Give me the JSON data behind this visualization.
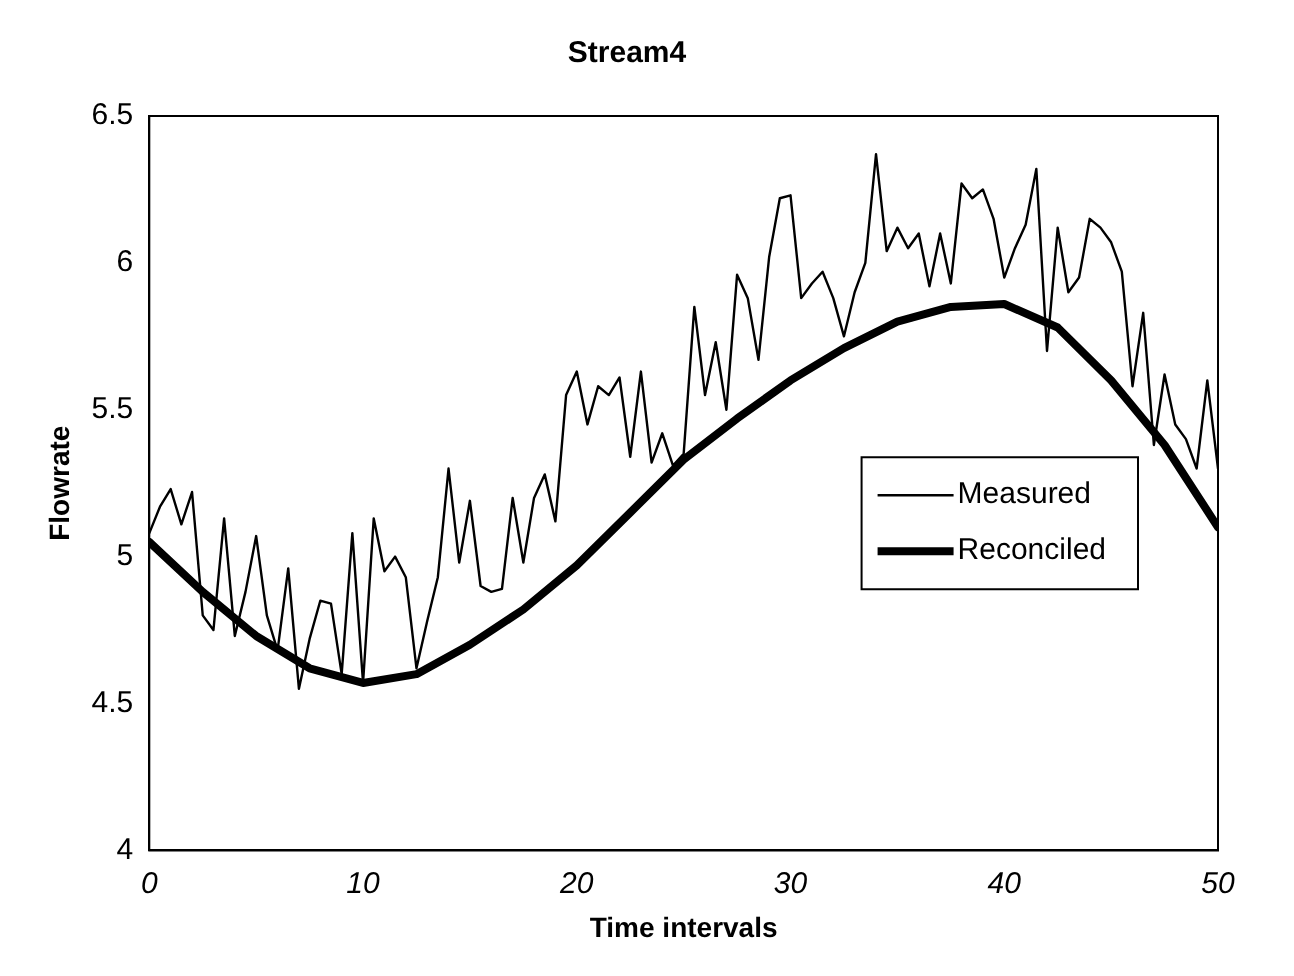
{
  "chart_data": {
    "type": "line",
    "title": "Stream4",
    "xlabel": "Time intervals",
    "ylabel": "Flowrate",
    "xlim": [
      0,
      50
    ],
    "xticks": [
      0,
      10,
      20,
      30,
      40,
      50
    ],
    "ylim": [
      4,
      6.5
    ],
    "yticks": [
      4,
      4.5,
      5,
      5.5,
      6,
      6.5
    ],
    "grid": false,
    "legend": "right",
    "marker": "none",
    "line_style": "solid",
    "series": [
      {
        "name": "Measured",
        "color": "#000000",
        "x": [
          0,
          0.5,
          1,
          1.5,
          2,
          2.5,
          3,
          3.5,
          4,
          4.5,
          5,
          5.5,
          6,
          6.5,
          7,
          7.5,
          8,
          8.5,
          9,
          9.5,
          10,
          10.5,
          11,
          11.5,
          12,
          12.5,
          13,
          13.5,
          14,
          14.5,
          15,
          15.5,
          16,
          16.5,
          17,
          17.5,
          18,
          18.5,
          19,
          19.5,
          20,
          20.5,
          21,
          21.5,
          22,
          22.5,
          23,
          23.5,
          24,
          24.5,
          25,
          25.5,
          26,
          26.5,
          27,
          27.5,
          28,
          28.5,
          29,
          29.5,
          30,
          30.5,
          31,
          31.5,
          32,
          32.5,
          33,
          33.5,
          34,
          34.5,
          35,
          35.5,
          36,
          36.5,
          37,
          37.5,
          38,
          38.5,
          39,
          39.5,
          40,
          40.5,
          41,
          41.5,
          42,
          42.5,
          43,
          43.5,
          44,
          44.5,
          45,
          45.5,
          46,
          46.5,
          47,
          47.5,
          48,
          48.5,
          49,
          49.5,
          50
        ],
        "values": [
          5.08,
          5.17,
          5.23,
          5.11,
          5.22,
          4.8,
          4.75,
          5.13,
          4.73,
          4.88,
          5.07,
          4.8,
          4.68,
          4.96,
          4.55,
          4.72,
          4.85,
          4.84,
          4.6,
          5.08,
          4.57,
          5.13,
          4.95,
          5.0,
          4.93,
          4.62,
          4.78,
          4.93,
          5.3,
          4.98,
          5.19,
          4.9,
          4.88,
          4.89,
          5.2,
          4.98,
          5.2,
          5.28,
          5.12,
          5.55,
          5.63,
          5.45,
          5.58,
          5.55,
          5.61,
          5.34,
          5.63,
          5.32,
          5.42,
          5.31,
          5.35,
          5.85,
          5.55,
          5.73,
          5.5,
          5.96,
          5.88,
          5.67,
          6.02,
          6.22,
          6.23,
          5.88,
          5.93,
          5.97,
          5.88,
          5.75,
          5.9,
          6.0,
          6.37,
          6.04,
          6.12,
          6.05,
          6.1,
          5.92,
          6.1,
          5.93,
          6.27,
          6.22,
          6.25,
          6.15,
          5.95,
          6.05,
          6.13,
          6.32,
          5.7,
          6.12,
          5.9,
          5.95,
          6.15,
          6.12,
          6.07,
          5.97,
          5.58,
          5.83,
          5.38,
          5.62,
          5.45,
          5.4,
          5.3,
          5.6,
          5.3
        ]
      },
      {
        "name": "Reconciled",
        "color": "#000000",
        "x": [
          0,
          2.5,
          5,
          7.5,
          10,
          12.5,
          15,
          17.5,
          20,
          22.5,
          25,
          27.5,
          30,
          32.5,
          35,
          37.5,
          40,
          42.5,
          45,
          47.5,
          50
        ],
        "values": [
          5.05,
          4.88,
          4.73,
          4.62,
          4.57,
          4.6,
          4.7,
          4.82,
          4.97,
          5.15,
          5.33,
          5.47,
          5.6,
          5.71,
          5.8,
          5.85,
          5.86,
          5.78,
          5.6,
          5.38,
          5.1
        ]
      }
    ]
  }
}
